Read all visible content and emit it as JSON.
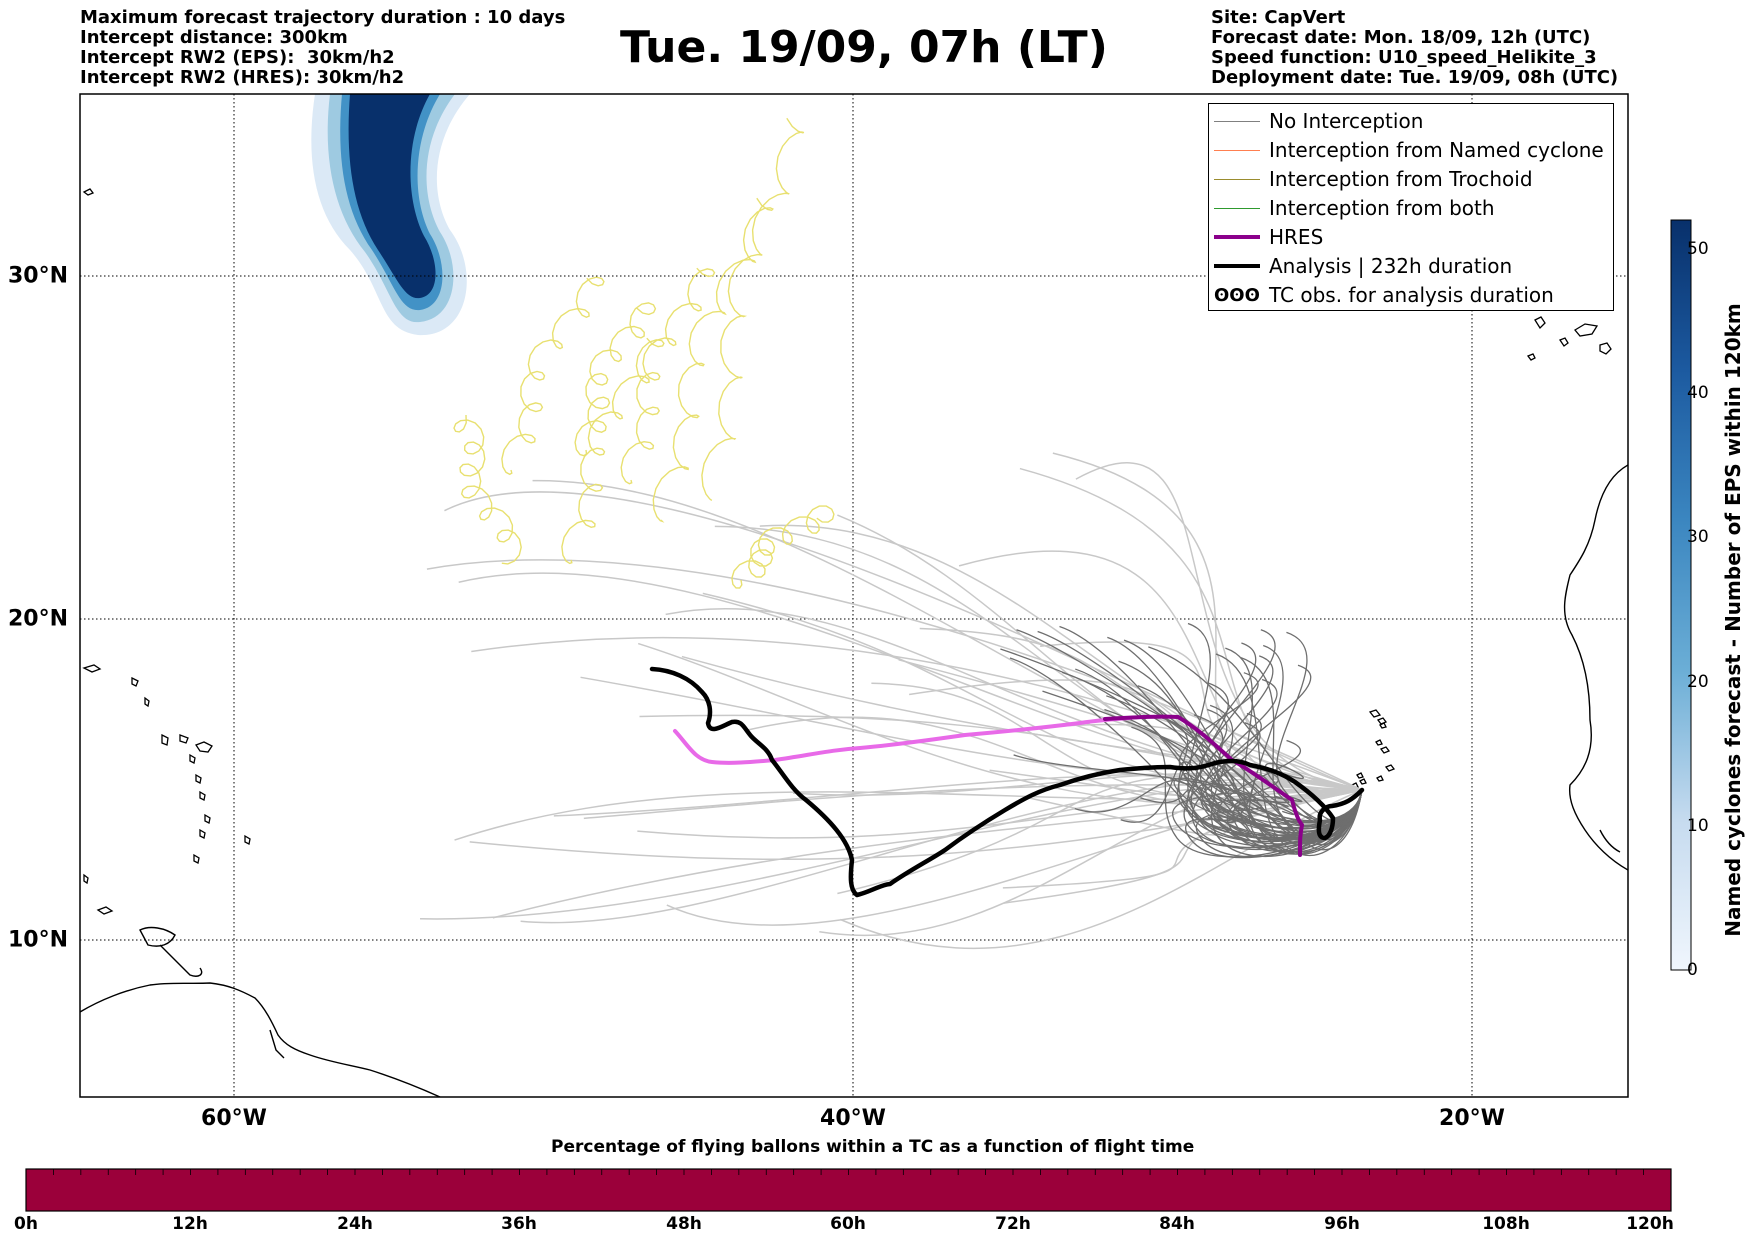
{
  "header_left": {
    "line1": "Maximum forecast trajectory duration : 10 days",
    "line2": "Intercept distance: 300km",
    "line3": "Intercept RW2 (EPS):  30km/h2",
    "line4": "Intercept RW2 (HRES): 30km/h2"
  },
  "title": "Tue. 19/09, 07h (LT)",
  "header_right": {
    "line1": "Site: CapVert",
    "line2": "Forecast date: Mon. 18/09, 12h (UTC)",
    "line3": "Speed function: U10_speed_Helikite_3",
    "line4": "Deployment date: Tue. 19/09, 08h (UTC)"
  },
  "map": {
    "lat_labels": [
      "30°N",
      "20°N",
      "10°N"
    ],
    "lon_labels": [
      "60°W",
      "40°W",
      "20°W"
    ],
    "lat_values": [
      30,
      20,
      10
    ],
    "lon_values": [
      -60,
      -40,
      -20
    ],
    "extent": {
      "lon_min": -65,
      "lon_max": -15,
      "lat_min": 5.4,
      "lat_max": 35.4
    },
    "grid": "dotted"
  },
  "legend": {
    "items": [
      {
        "label": "No Interception",
        "color": "#808080",
        "width": 1.2
      },
      {
        "label": "Interception from Named cyclone",
        "color": "#ff7f50",
        "width": 1.2
      },
      {
        "label": "Interception from Trochoid",
        "color": "#9a8c2e",
        "width": 1.2
      },
      {
        "label": "Interception from both",
        "color": "#2e9a2e",
        "width": 1.2
      },
      {
        "label": "HRES",
        "color": "#8b008b",
        "width": 4
      },
      {
        "label": "Analysis | 232h duration",
        "color": "#000000",
        "width": 4
      }
    ],
    "tc_symbol": "ʘʘʘ",
    "tc_label": "TC obs. for analysis duration"
  },
  "colorbar": {
    "label": "Named cyclones forecast - Number of EPS within 120km",
    "ticks": [
      "0",
      "10",
      "20",
      "30",
      "40",
      "50"
    ],
    "max": 52,
    "color_low": "#f0f6fd",
    "color_high": "#08306b"
  },
  "flight_bar": {
    "title": "Percentage of flying ballons within a TC as a function of flight time",
    "ticks": [
      "0h",
      "12h",
      "24h",
      "36h",
      "48h",
      "60h",
      "72h",
      "84h",
      "96h",
      "108h",
      "120h"
    ],
    "color": "#9b003a",
    "percentage": 100
  },
  "colors": {
    "hres_fresh": "#e86ae8",
    "hres_old": "#8b008b",
    "analysis": "#000000",
    "trochoid_tracks": "#e8e070",
    "ensemble_light": "#c8c8c8",
    "ensemble_dark": "#6e6e6e"
  }
}
